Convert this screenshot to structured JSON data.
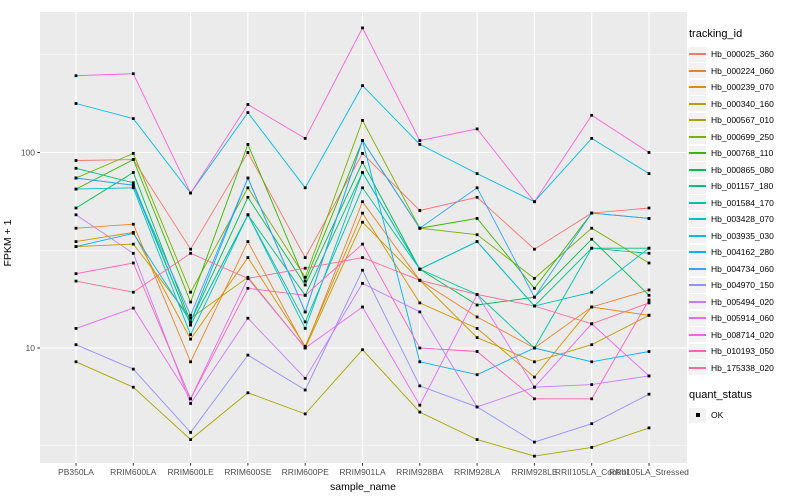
{
  "figure": {
    "y_axis_title": "FPKM + 1",
    "x_axis_title": "sample_name"
  },
  "legend": {
    "tracking_title": "tracking_id",
    "quant_title": "quant_status",
    "quant_ok_label": "OK"
  },
  "chart_data": {
    "type": "line",
    "title": "",
    "xlabel": "sample_name",
    "ylabel": "FPKM + 1",
    "y_scale": "log10",
    "y_ticks": [
      100,
      10
    ],
    "y_minor_gridlines": [
      316.2,
      31.62,
      3.162
    ],
    "ylim": [
      2.5,
      460
    ],
    "grid": true,
    "legend_position": "right",
    "panel_background": "#EBEBEB",
    "gridline_color": "#FFFFFF",
    "point_color": "#000000",
    "point_shape": "square",
    "categories": [
      "PB350LA",
      "RRIM600LA",
      "RRIM600LE",
      "RRIM600SE",
      "RRIM600PE",
      "RRIM901LA",
      "RRIM928BA",
      "RRIM928LA",
      "RRIM928LE",
      "RRII105LA_Control",
      "RRII105LA_Stressed"
    ],
    "quant_status_all": "OK",
    "series": [
      {
        "name": "Hb_000025_360",
        "color": "#F8766D",
        "quant_status": "OK",
        "values": [
          91,
          92,
          32,
          100,
          29,
          99,
          50.5,
          59,
          32,
          49,
          52
        ]
      },
      {
        "name": "Hb_000224_060",
        "color": "#EA8331",
        "quant_status": "OK",
        "values": [
          41,
          43,
          8.5,
          35,
          10,
          56,
          22.2,
          14.4,
          10,
          16.2,
          19.8
        ]
      },
      {
        "name": "Hb_000239_070",
        "color": "#D89000",
        "quant_status": "OK",
        "values": [
          35,
          39,
          11.1,
          29,
          10.2,
          49,
          17,
          12.6,
          7.1,
          16.2,
          14.7
        ]
      },
      {
        "name": "Hb_000340_160",
        "color": "#C09B00",
        "quant_status": "OK",
        "values": [
          33,
          34,
          14.2,
          23,
          10,
          44,
          22.2,
          11.3,
          8.5,
          10.4,
          14.7
        ]
      },
      {
        "name": "Hb_000567_010",
        "color": "#A3A500",
        "quant_status": "OK",
        "values": [
          8.5,
          6.3,
          3.4,
          5.9,
          4.6,
          9.8,
          4.7,
          3.4,
          2.8,
          3.1,
          3.9
        ]
      },
      {
        "name": "Hb_000699_250",
        "color": "#7CAE00",
        "quant_status": "OK",
        "values": [
          74,
          99,
          19.3,
          66,
          23,
          146,
          41,
          38,
          22.7,
          41,
          27.2
        ]
      },
      {
        "name": "Hb_000768_110",
        "color": "#39B600",
        "quant_status": "OK",
        "values": [
          65,
          92,
          17.2,
          110,
          22,
          115,
          41,
          46,
          20.2,
          49,
          46
        ]
      },
      {
        "name": "Hb_000865_080",
        "color": "#00BB4E",
        "quant_status": "OK",
        "values": [
          52,
          79,
          13.6,
          59,
          21,
          89,
          25.3,
          16.6,
          18.2,
          36,
          18.6
        ]
      },
      {
        "name": "Hb_001157_180",
        "color": "#00BF7D",
        "quant_status": "OK",
        "values": [
          83,
          70,
          13.1,
          48,
          18.6,
          79,
          25.3,
          35,
          16.4,
          32.4,
          32.4
        ]
      },
      {
        "name": "Hb_001584_170",
        "color": "#00C1A3",
        "quant_status": "OK",
        "values": [
          74,
          68,
          13.1,
          48,
          13.6,
          66,
          25.3,
          18.8,
          10,
          32.4,
          30.5
        ]
      },
      {
        "name": "Hb_003428_070",
        "color": "#00BFC4",
        "quant_status": "OK",
        "values": [
          65,
          66,
          11.7,
          48,
          12.6,
          79,
          25.3,
          35,
          16.4,
          19.3,
          32.4
        ]
      },
      {
        "name": "Hb_003935_030",
        "color": "#00BAE0",
        "quant_status": "OK",
        "values": [
          178,
          149,
          62,
          160,
          66,
          220,
          110,
          78,
          56,
          118,
          78
        ]
      },
      {
        "name": "Hb_004162_280",
        "color": "#00B0F6",
        "quant_status": "OK",
        "values": [
          33,
          38.6,
          13.6,
          74,
          15.3,
          115,
          8.5,
          7.3,
          10,
          8.5,
          9.6
        ]
      },
      {
        "name": "Hb_004734_060",
        "color": "#35A2FF",
        "quant_status": "OK",
        "values": [
          74,
          68,
          14.7,
          74,
          15.3,
          115,
          41,
          66,
          18.2,
          49,
          46
        ]
      },
      {
        "name": "Hb_004970_150",
        "color": "#9590FF",
        "quant_status": "OK",
        "values": [
          10.4,
          7.8,
          3.7,
          9.2,
          6.1,
          25,
          6.4,
          5,
          3.3,
          4.1,
          5.8
        ]
      },
      {
        "name": "Hb_005494_020",
        "color": "#C77CFF",
        "quant_status": "OK",
        "values": [
          48,
          30.5,
          5.2,
          14.2,
          7,
          21.4,
          15.3,
          5,
          6.3,
          6.5,
          7.2
        ]
      },
      {
        "name": "Hb_005914_060",
        "color": "#E76BF3",
        "quant_status": "OK",
        "values": [
          12.6,
          16,
          5.5,
          22.7,
          10,
          16.2,
          5.1,
          18.8,
          6.3,
          13.3,
          7.2
        ]
      },
      {
        "name": "Hb_008714_020",
        "color": "#FA62DB",
        "quant_status": "OK",
        "values": [
          247,
          253,
          62,
          176,
          118,
          434,
          115,
          132,
          56,
          155,
          100
        ]
      },
      {
        "name": "Hb_010193_050",
        "color": "#FF62BC",
        "quant_status": "OK",
        "values": [
          24,
          27.2,
          5.5,
          20.2,
          18.6,
          34,
          10,
          9.6,
          5.5,
          5.5,
          17.6
        ]
      },
      {
        "name": "Hb_175338_020",
        "color": "#FF6A98",
        "quant_status": "OK",
        "values": [
          22,
          19.3,
          30.5,
          22.7,
          25.6,
          29,
          22.2,
          18.8,
          16.4,
          13.3,
          17
        ]
      }
    ]
  }
}
